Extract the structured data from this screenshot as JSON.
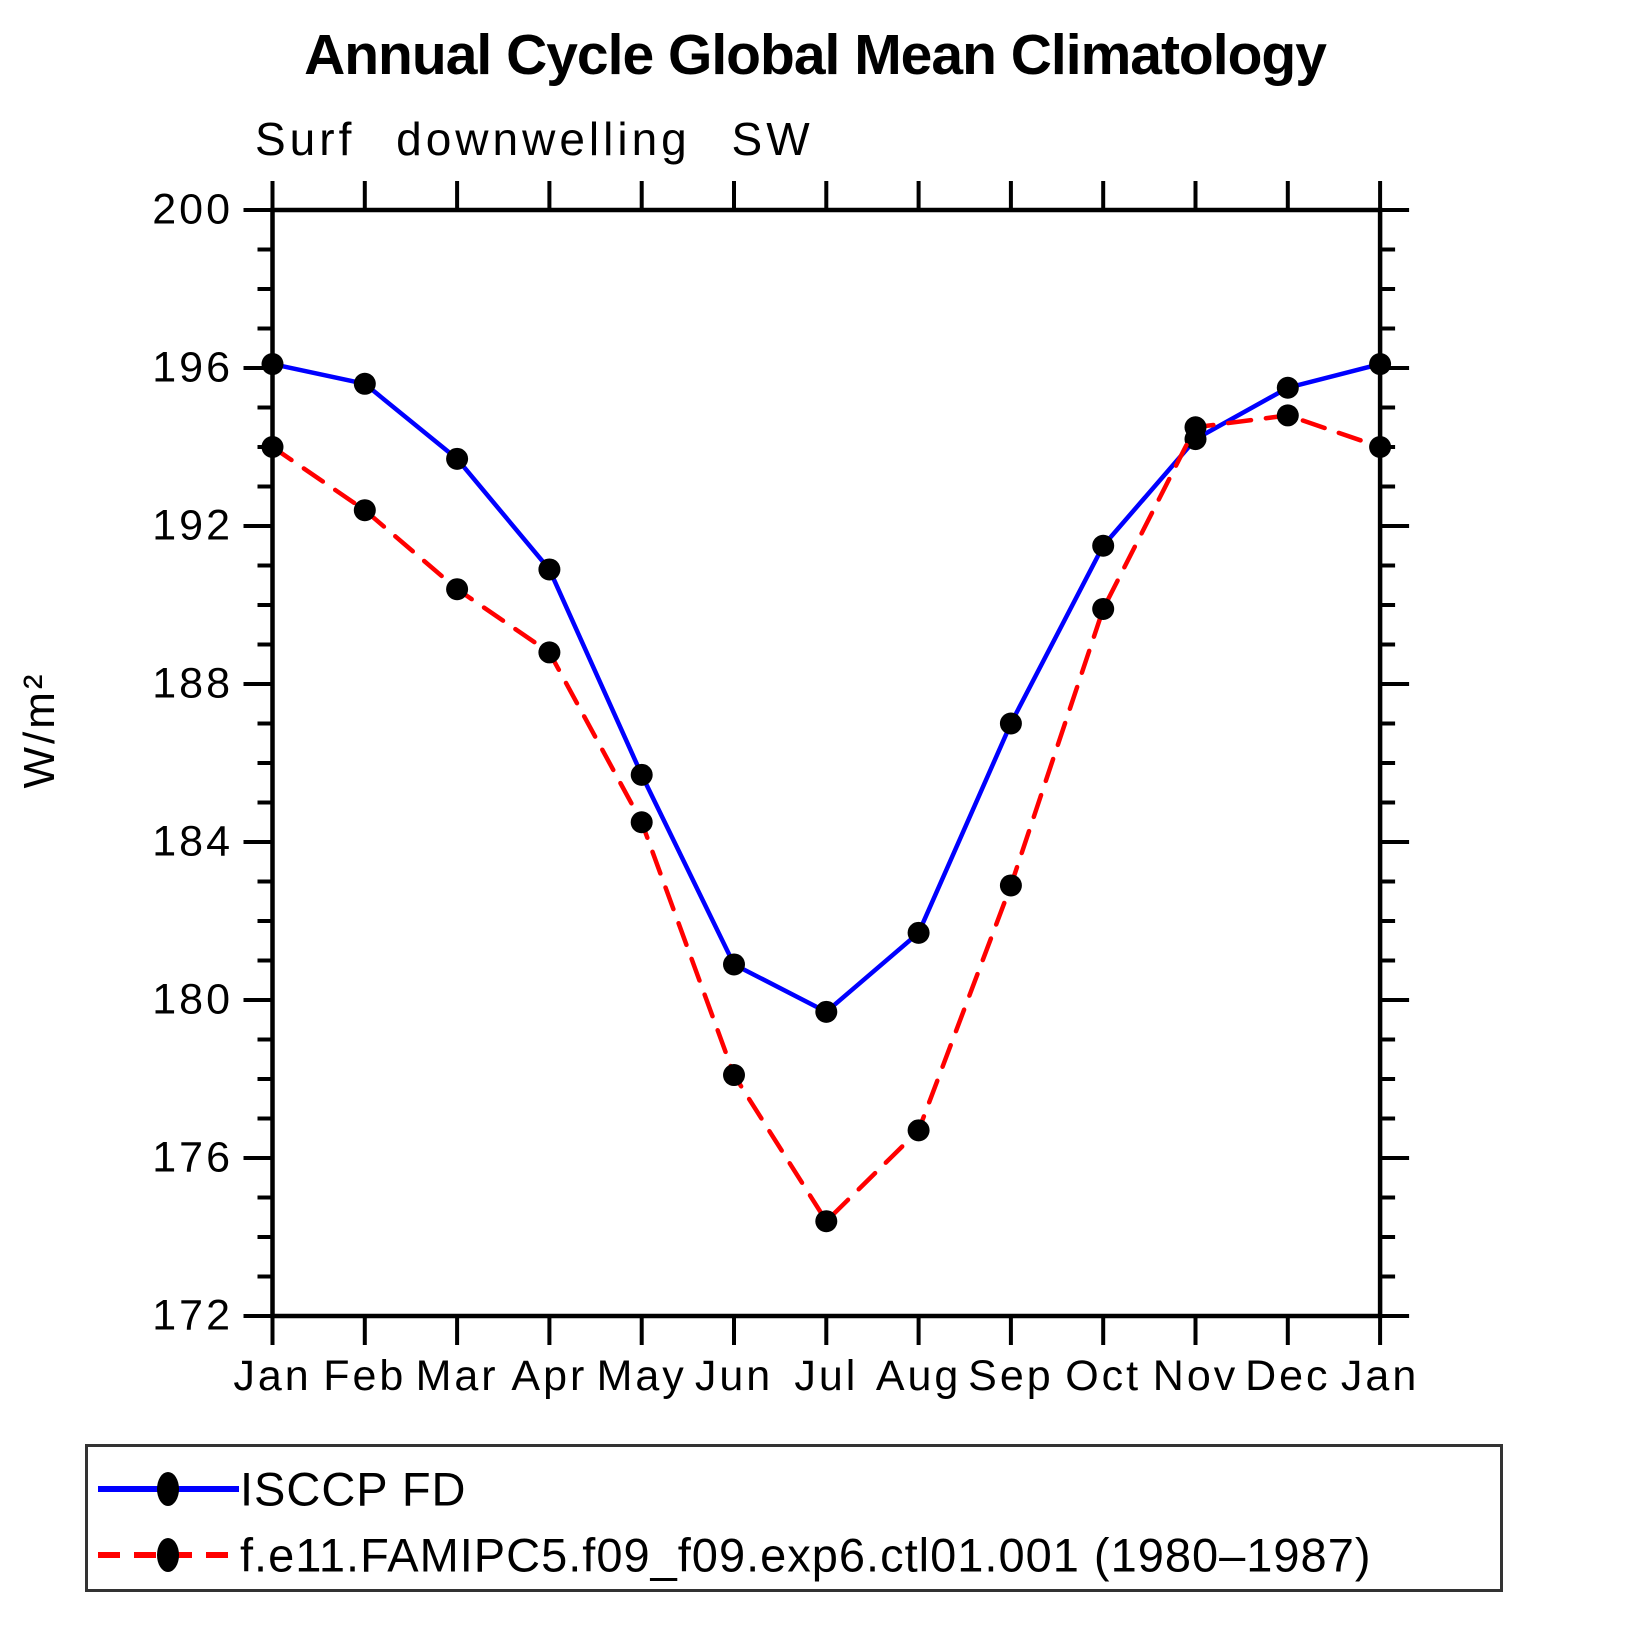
{
  "header": {
    "title": "Annual Cycle Global Mean Climatology",
    "subtitle": "Surf downwelling SW"
  },
  "chart_data": {
    "type": "line",
    "title": "Annual Cycle Global Mean Climatology",
    "subtitle": "Surf downwelling SW",
    "xlabel": "",
    "ylabel": "W/m²",
    "x_categories": [
      "Jan",
      "Feb",
      "Mar",
      "Apr",
      "May",
      "Jun",
      "Jul",
      "Aug",
      "Sep",
      "Oct",
      "Nov",
      "Dec",
      "Jan"
    ],
    "ylim": [
      172,
      200
    ],
    "yticks_major": [
      172,
      176,
      180,
      184,
      188,
      192,
      196,
      200
    ],
    "ytick_minor_step": 1,
    "grid": false,
    "legend_position": "bottom",
    "frame_color": "#000000",
    "marker_color": "#000000",
    "series": [
      {
        "name": "ISCCP FD",
        "color": "#0000ff",
        "style": "solid",
        "marker": "filled-circle",
        "values": [
          196.1,
          195.6,
          193.7,
          190.9,
          185.7,
          180.9,
          179.7,
          181.7,
          187.0,
          191.5,
          194.2,
          195.5,
          196.1
        ]
      },
      {
        "name": "f.e11.FAMIPC5.f09_f09.exp6.ctl01.001 (1980–1987)",
        "color": "#ff0000",
        "style": "dashed",
        "marker": "filled-circle",
        "values": [
          194.0,
          192.4,
          190.4,
          188.8,
          184.5,
          178.1,
          174.4,
          176.7,
          182.9,
          189.9,
          194.5,
          194.8,
          194.0
        ]
      }
    ]
  }
}
